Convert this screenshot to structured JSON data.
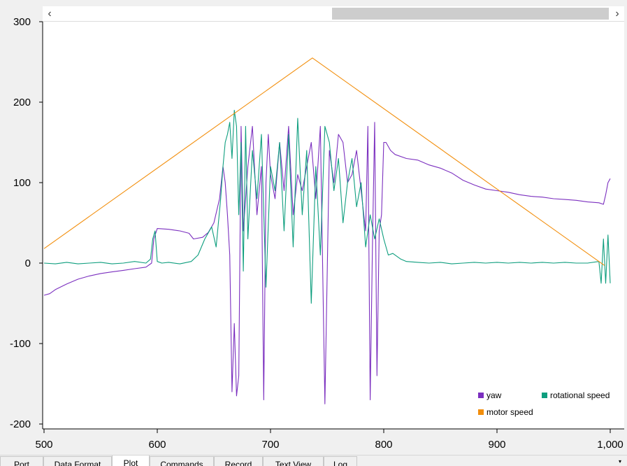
{
  "chart_data": {
    "type": "line",
    "title": "",
    "xlabel": "",
    "ylabel": "",
    "xlim": [
      500,
      1000
    ],
    "ylim": [
      -200,
      300
    ],
    "x_ticks": [
      500,
      600,
      700,
      800,
      900,
      1000
    ],
    "x_tick_labels": [
      "500",
      "600",
      "700",
      "800",
      "900",
      "1,000"
    ],
    "y_ticks": [
      -200,
      -100,
      0,
      100,
      200,
      300
    ],
    "y_tick_labels": [
      "-200",
      "-100",
      "0",
      "100",
      "200",
      "300"
    ],
    "grid": false,
    "legend_position": "bottom-right",
    "series": [
      {
        "name": "yaw",
        "color": "#7b2fbf",
        "x": [
          500,
          505,
          510,
          520,
          530,
          540,
          550,
          560,
          570,
          580,
          590,
          595,
          597,
          600,
          610,
          620,
          628,
          632,
          640,
          645,
          650,
          655,
          658,
          660,
          662,
          664,
          666,
          668,
          670,
          672,
          674,
          676,
          678,
          680,
          684,
          688,
          692,
          694,
          696,
          698,
          700,
          704,
          708,
          712,
          716,
          720,
          724,
          728,
          732,
          736,
          740,
          744,
          748,
          752,
          756,
          760,
          764,
          768,
          772,
          776,
          780,
          784,
          786,
          788,
          790,
          792,
          794,
          796,
          798,
          800,
          802,
          806,
          810,
          820,
          830,
          840,
          850,
          860,
          870,
          880,
          890,
          900,
          910,
          920,
          930,
          940,
          950,
          960,
          970,
          980,
          990,
          994,
          996,
          998,
          1000
        ],
        "y": [
          -40,
          -38,
          -33,
          -26,
          -20,
          -16,
          -13,
          -11,
          -9,
          -7,
          -5,
          0,
          30,
          43,
          42,
          40,
          37,
          30,
          32,
          38,
          50,
          80,
          120,
          100,
          60,
          10,
          -160,
          -75,
          -165,
          -140,
          170,
          40,
          80,
          120,
          170,
          60,
          120,
          -170,
          100,
          160,
          110,
          80,
          150,
          90,
          170,
          60,
          110,
          90,
          120,
          150,
          80,
          170,
          -175,
          140,
          100,
          160,
          150,
          100,
          110,
          140,
          90,
          40,
          170,
          -170,
          20,
          175,
          -140,
          40,
          60,
          150,
          150,
          140,
          135,
          130,
          128,
          122,
          118,
          112,
          103,
          97,
          92,
          90,
          88,
          85,
          83,
          82,
          80,
          79,
          78,
          76,
          75,
          73,
          85,
          100,
          105
        ]
      },
      {
        "name": "rotational speed",
        "color": "#0e9e7e",
        "x": [
          500,
          510,
          520,
          530,
          540,
          550,
          560,
          570,
          580,
          590,
          594,
          596,
          598,
          600,
          604,
          610,
          620,
          630,
          636,
          642,
          648,
          652,
          656,
          658,
          660,
          662,
          664,
          666,
          668,
          670,
          672,
          674,
          676,
          678,
          680,
          684,
          688,
          692,
          696,
          700,
          704,
          708,
          712,
          716,
          720,
          724,
          728,
          732,
          736,
          740,
          744,
          748,
          752,
          756,
          760,
          764,
          768,
          772,
          776,
          780,
          784,
          788,
          792,
          796,
          800,
          804,
          808,
          815,
          820,
          830,
          840,
          850,
          860,
          870,
          880,
          890,
          900,
          910,
          920,
          930,
          940,
          950,
          960,
          970,
          980,
          990,
          992,
          994,
          996,
          998,
          1000
        ],
        "y": [
          0,
          -1,
          1,
          -1,
          0,
          1,
          -1,
          0,
          2,
          0,
          5,
          30,
          40,
          2,
          0,
          1,
          -1,
          2,
          10,
          30,
          45,
          20,
          80,
          120,
          150,
          160,
          175,
          130,
          190,
          170,
          60,
          150,
          -10,
          170,
          30,
          140,
          80,
          160,
          -30,
          120,
          90,
          150,
          40,
          160,
          20,
          180,
          60,
          140,
          -50,
          120,
          10,
          170,
          150,
          90,
          130,
          50,
          100,
          130,
          70,
          100,
          20,
          60,
          30,
          55,
          30,
          10,
          12,
          5,
          2,
          1,
          0,
          1,
          -1,
          0,
          1,
          0,
          1,
          0,
          1,
          0,
          1,
          0,
          1,
          0,
          0,
          2,
          -25,
          30,
          -25,
          35,
          -25
        ]
      },
      {
        "name": "motor speed",
        "color": "#f28e0c",
        "x": [
          500,
          737,
          995
        ],
        "y": [
          18,
          255,
          -3
        ]
      }
    ]
  },
  "plot": {
    "scrollbar": {
      "left_arrow": "‹",
      "right_arrow": "›"
    }
  },
  "tabs": [
    {
      "label": "Port"
    },
    {
      "label": "Data Format"
    },
    {
      "label": "Plot"
    },
    {
      "label": "Commands"
    },
    {
      "label": "Record"
    },
    {
      "label": "Text View"
    },
    {
      "label": "Log"
    }
  ],
  "tab_menu_icon": "▾"
}
